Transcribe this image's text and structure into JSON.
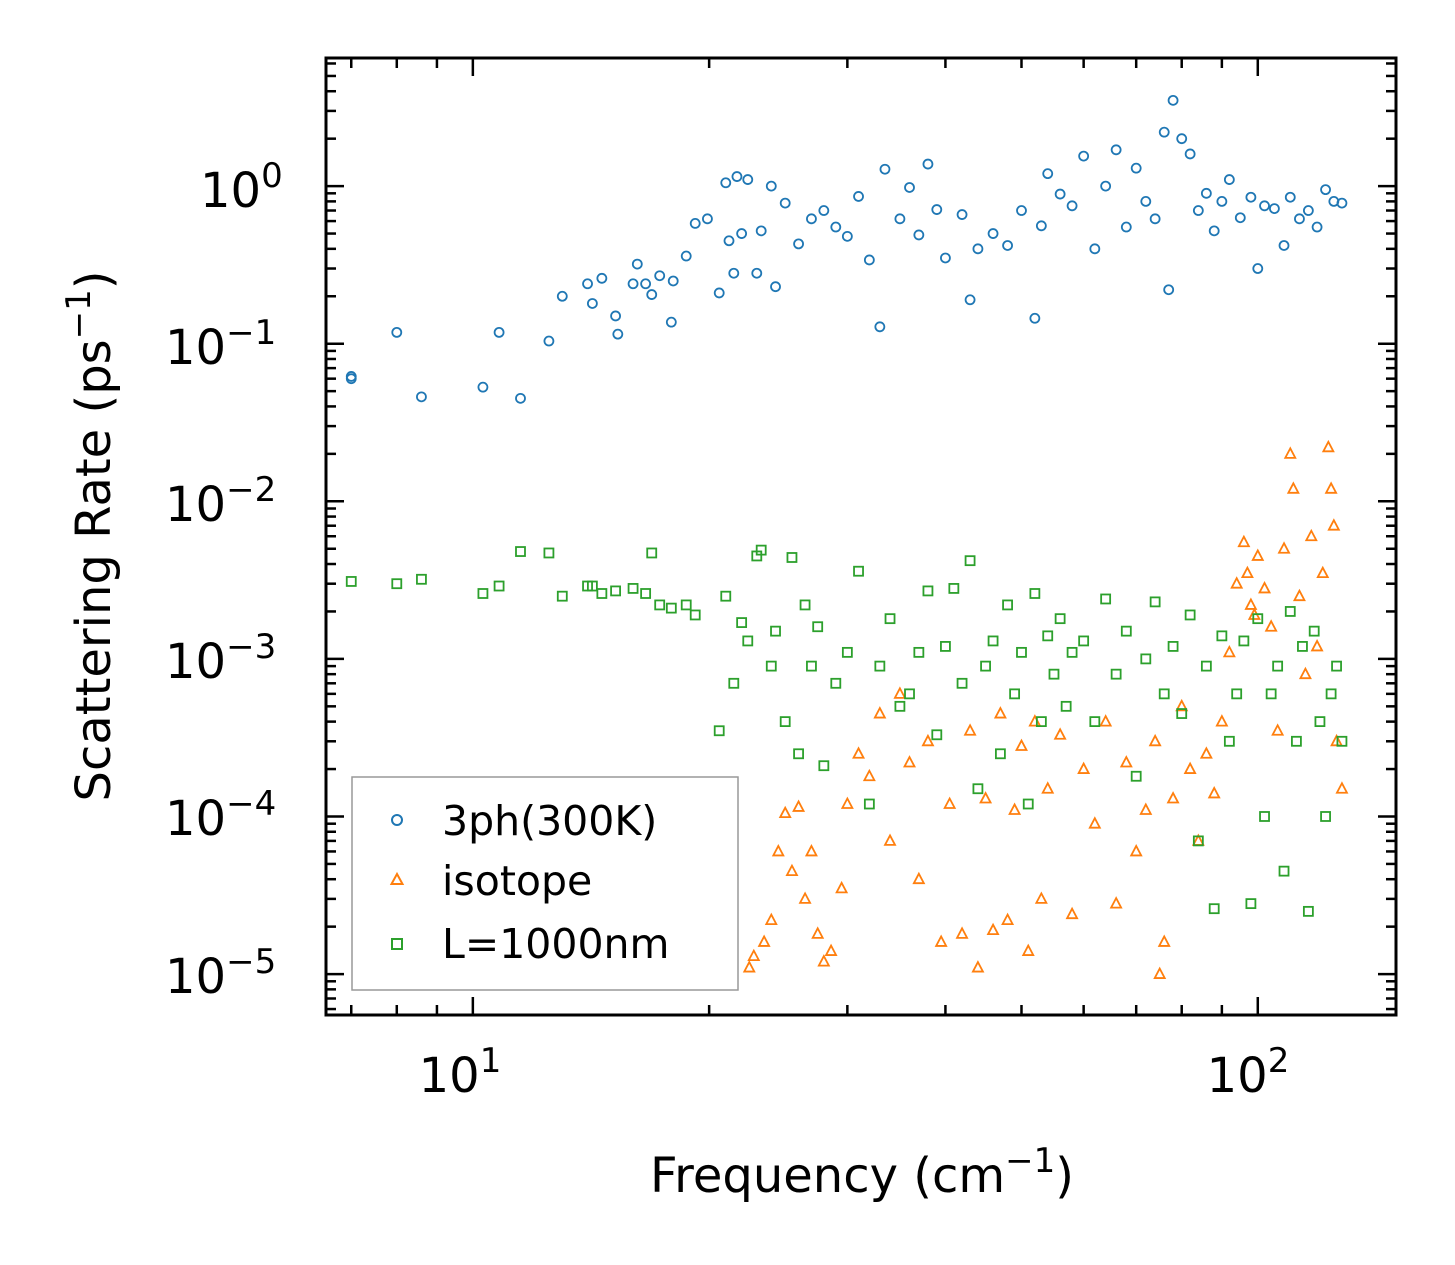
{
  "chart_data": {
    "type": "scatter",
    "title": "",
    "xlabel": "Frequency (cm",
    "xlabel_sup": "−1",
    "xlabel_tail": ")",
    "ylabel": "Scattering Rate (ps",
    "ylabel_sup": "−1",
    "ylabel_tail": ")",
    "xscale": "log",
    "yscale": "log",
    "xlim": [
      6.5,
      150
    ],
    "ylim": [
      5.5e-06,
      6.5
    ],
    "x_ticks": [
      {
        "value": 10,
        "base": "10",
        "exp": "1"
      },
      {
        "value": 100,
        "base": "10",
        "exp": "2"
      }
    ],
    "y_ticks": [
      {
        "value": 1,
        "base": "10",
        "exp": "0"
      },
      {
        "value": 0.1,
        "base": "10",
        "exp": "−1"
      },
      {
        "value": 0.01,
        "base": "10",
        "exp": "−2"
      },
      {
        "value": 0.001,
        "base": "10",
        "exp": "−3"
      },
      {
        "value": 0.0001,
        "base": "10",
        "exp": "−4"
      },
      {
        "value": 1e-05,
        "base": "10",
        "exp": "−5"
      }
    ],
    "legend_position": "lower-left",
    "series": [
      {
        "name": "3ph(300K)",
        "marker": "circle",
        "color": "#1f77b4",
        "sampled_points": [
          [
            7.0,
            0.062
          ],
          [
            7.0,
            0.06
          ],
          [
            8.0,
            0.118
          ],
          [
            8.6,
            0.046
          ],
          [
            10.3,
            0.053
          ],
          [
            10.8,
            0.118
          ],
          [
            11.5,
            0.045
          ],
          [
            12.5,
            0.104
          ],
          [
            13.0,
            0.2
          ],
          [
            14.0,
            0.24
          ],
          [
            14.2,
            0.18
          ],
          [
            14.6,
            0.26
          ],
          [
            15.2,
            0.15
          ],
          [
            15.3,
            0.115
          ],
          [
            16.0,
            0.24
          ],
          [
            16.2,
            0.32
          ],
          [
            16.6,
            0.24
          ],
          [
            16.9,
            0.205
          ],
          [
            17.3,
            0.27
          ],
          [
            17.9,
            0.137
          ],
          [
            18.0,
            0.25
          ],
          [
            18.7,
            0.36
          ],
          [
            19.2,
            0.58
          ],
          [
            19.9,
            0.62
          ],
          [
            20.6,
            0.21
          ],
          [
            21.0,
            1.05
          ],
          [
            21.2,
            0.45
          ],
          [
            21.5,
            0.28
          ],
          [
            21.7,
            1.15
          ],
          [
            22.0,
            0.5
          ],
          [
            22.4,
            1.1
          ],
          [
            23.0,
            0.28
          ],
          [
            23.3,
            0.52
          ],
          [
            24.0,
            1.0
          ],
          [
            24.3,
            0.23
          ],
          [
            25.0,
            0.78
          ],
          [
            26.0,
            0.43
          ],
          [
            27.0,
            0.62
          ],
          [
            28.0,
            0.7
          ],
          [
            29.0,
            0.55
          ],
          [
            30.0,
            0.48
          ],
          [
            31.0,
            0.86
          ],
          [
            32.0,
            0.34
          ],
          [
            33.0,
            0.128
          ],
          [
            33.5,
            1.28
          ],
          [
            35.0,
            0.62
          ],
          [
            36.0,
            0.98
          ],
          [
            37.0,
            0.49
          ],
          [
            38.0,
            1.38
          ],
          [
            39.0,
            0.71
          ],
          [
            40.0,
            0.35
          ],
          [
            42.0,
            0.66
          ],
          [
            43.0,
            0.19
          ],
          [
            44.0,
            0.4
          ],
          [
            46.0,
            0.5
          ],
          [
            48.0,
            0.42
          ],
          [
            50.0,
            0.7
          ],
          [
            52.0,
            0.145
          ],
          [
            53.0,
            0.56
          ],
          [
            54.0,
            1.2
          ],
          [
            56.0,
            0.89
          ],
          [
            58.0,
            0.75
          ],
          [
            60.0,
            1.55
          ],
          [
            62.0,
            0.4
          ],
          [
            64.0,
            1.0
          ],
          [
            66.0,
            1.7
          ],
          [
            68.0,
            0.55
          ],
          [
            70.0,
            1.3
          ],
          [
            72.0,
            0.8
          ],
          [
            74.0,
            0.62
          ],
          [
            76.0,
            2.2
          ],
          [
            77.0,
            0.22
          ],
          [
            78.0,
            3.5
          ],
          [
            80.0,
            2.0
          ],
          [
            82.0,
            1.6
          ],
          [
            84.0,
            0.7
          ],
          [
            86.0,
            0.9
          ],
          [
            88.0,
            0.52
          ],
          [
            90.0,
            0.8
          ],
          [
            92.0,
            1.1
          ],
          [
            95.0,
            0.63
          ],
          [
            98.0,
            0.85
          ],
          [
            100.0,
            0.3
          ],
          [
            102.0,
            0.75
          ],
          [
            105.0,
            0.72
          ],
          [
            108.0,
            0.42
          ],
          [
            110.0,
            0.85
          ],
          [
            113.0,
            0.62
          ],
          [
            116.0,
            0.7
          ],
          [
            119.0,
            0.55
          ],
          [
            122.0,
            0.95
          ],
          [
            125.0,
            0.8
          ],
          [
            128.0,
            0.78
          ]
        ]
      },
      {
        "name": "isotope",
        "marker": "triangle",
        "color": "#ff7f0e",
        "sampled_points": [
          [
            22.5,
            1.1e-05
          ],
          [
            22.8,
            1.3e-05
          ],
          [
            23.5,
            1.6e-05
          ],
          [
            24.0,
            2.2e-05
          ],
          [
            24.5,
            6e-05
          ],
          [
            25.0,
            0.000105
          ],
          [
            25.5,
            4.5e-05
          ],
          [
            26.0,
            0.000115
          ],
          [
            26.5,
            3e-05
          ],
          [
            27.0,
            6e-05
          ],
          [
            27.5,
            1.8e-05
          ],
          [
            28.0,
            1.2e-05
          ],
          [
            28.6,
            1.4e-05
          ],
          [
            29.5,
            3.5e-05
          ],
          [
            30.0,
            0.00012
          ],
          [
            31.0,
            0.00025
          ],
          [
            32.0,
            0.00018
          ],
          [
            33.0,
            0.00045
          ],
          [
            34.0,
            7e-05
          ],
          [
            35.0,
            0.0006
          ],
          [
            36.0,
            0.00022
          ],
          [
            37.0,
            4e-05
          ],
          [
            38.0,
            0.0003
          ],
          [
            39.5,
            1.6e-05
          ],
          [
            40.5,
            0.00012
          ],
          [
            42.0,
            1.8e-05
          ],
          [
            43.0,
            0.00035
          ],
          [
            44.0,
            1.1e-05
          ],
          [
            45.0,
            0.00013
          ],
          [
            46.0,
            1.9e-05
          ],
          [
            47.0,
            0.00045
          ],
          [
            48.0,
            2.2e-05
          ],
          [
            49.0,
            0.00011
          ],
          [
            50.0,
            0.00028
          ],
          [
            51.0,
            1.4e-05
          ],
          [
            52.0,
            0.0004
          ],
          [
            53.0,
            3e-05
          ],
          [
            54.0,
            0.00015
          ],
          [
            56.0,
            0.00033
          ],
          [
            58.0,
            2.4e-05
          ],
          [
            60.0,
            0.0002
          ],
          [
            62.0,
            9e-05
          ],
          [
            64.0,
            0.0004
          ],
          [
            66.0,
            2.8e-05
          ],
          [
            68.0,
            0.00022
          ],
          [
            70.0,
            6e-05
          ],
          [
            72.0,
            0.00011
          ],
          [
            74.0,
            0.0003
          ],
          [
            75.0,
            1e-05
          ],
          [
            76.0,
            1.6e-05
          ],
          [
            78.0,
            0.00013
          ],
          [
            80.0,
            0.0005
          ],
          [
            82.0,
            0.0002
          ],
          [
            84.0,
            7e-05
          ],
          [
            86.0,
            0.00025
          ],
          [
            88.0,
            0.00014
          ],
          [
            90.0,
            0.0004
          ],
          [
            92.0,
            0.0011
          ],
          [
            94.0,
            0.003
          ],
          [
            96.0,
            0.0055
          ],
          [
            97.0,
            0.0035
          ],
          [
            98.0,
            0.0022
          ],
          [
            99.0,
            0.0019
          ],
          [
            100.0,
            0.0045
          ],
          [
            102.0,
            0.0028
          ],
          [
            104.0,
            0.0016
          ],
          [
            106.0,
            0.00035
          ],
          [
            108.0,
            0.005
          ],
          [
            110.0,
            0.02
          ],
          [
            111.0,
            0.012
          ],
          [
            113.0,
            0.0025
          ],
          [
            115.0,
            0.0008
          ],
          [
            117.0,
            0.006
          ],
          [
            119.0,
            0.0012
          ],
          [
            121.0,
            0.0035
          ],
          [
            123.0,
            0.022
          ],
          [
            124.0,
            0.012
          ],
          [
            125.0,
            0.007
          ],
          [
            126.0,
            0.0003
          ],
          [
            128.0,
            0.00015
          ]
        ]
      },
      {
        "name": "L=1000nm",
        "marker": "square",
        "color": "#2ca02c",
        "sampled_points": [
          [
            7.0,
            0.0031
          ],
          [
            8.0,
            0.003
          ],
          [
            8.6,
            0.0032
          ],
          [
            10.3,
            0.0026
          ],
          [
            10.8,
            0.0029
          ],
          [
            11.5,
            0.0048
          ],
          [
            12.5,
            0.0047
          ],
          [
            13.0,
            0.0025
          ],
          [
            14.0,
            0.0029
          ],
          [
            14.2,
            0.0029
          ],
          [
            14.6,
            0.0026
          ],
          [
            15.2,
            0.0027
          ],
          [
            16.0,
            0.0028
          ],
          [
            16.6,
            0.0026
          ],
          [
            16.9,
            0.0047
          ],
          [
            17.3,
            0.0022
          ],
          [
            17.9,
            0.0021
          ],
          [
            18.7,
            0.0022
          ],
          [
            19.2,
            0.0019
          ],
          [
            20.6,
            0.00035
          ],
          [
            21.0,
            0.0025
          ],
          [
            21.5,
            0.0007
          ],
          [
            22.0,
            0.0017
          ],
          [
            22.4,
            0.0013
          ],
          [
            23.0,
            0.0045
          ],
          [
            23.3,
            0.0049
          ],
          [
            24.0,
            0.0009
          ],
          [
            24.3,
            0.0015
          ],
          [
            25.0,
            0.0004
          ],
          [
            25.5,
            0.0044
          ],
          [
            26.0,
            0.00025
          ],
          [
            26.5,
            0.0022
          ],
          [
            27.0,
            0.0009
          ],
          [
            27.5,
            0.0016
          ],
          [
            28.0,
            0.00021
          ],
          [
            29.0,
            0.0007
          ],
          [
            30.0,
            0.0011
          ],
          [
            31.0,
            0.0036
          ],
          [
            32.0,
            0.00012
          ],
          [
            33.0,
            0.0009
          ],
          [
            34.0,
            0.0018
          ],
          [
            35.0,
            0.0005
          ],
          [
            36.0,
            0.0006
          ],
          [
            37.0,
            0.0011
          ],
          [
            38.0,
            0.0027
          ],
          [
            39.0,
            0.00033
          ],
          [
            40.0,
            0.0012
          ],
          [
            41.0,
            0.0028
          ],
          [
            42.0,
            0.0007
          ],
          [
            43.0,
            0.0042
          ],
          [
            44.0,
            0.00015
          ],
          [
            45.0,
            0.0009
          ],
          [
            46.0,
            0.0013
          ],
          [
            47.0,
            0.00025
          ],
          [
            48.0,
            0.0022
          ],
          [
            49.0,
            0.0006
          ],
          [
            50.0,
            0.0011
          ],
          [
            51.0,
            0.00012
          ],
          [
            52.0,
            0.0026
          ],
          [
            53.0,
            0.0004
          ],
          [
            54.0,
            0.0014
          ],
          [
            55.0,
            0.0008
          ],
          [
            56.0,
            0.0018
          ],
          [
            57.0,
            0.0005
          ],
          [
            58.0,
            0.0011
          ],
          [
            60.0,
            0.0013
          ],
          [
            62.0,
            0.0004
          ],
          [
            64.0,
            0.0024
          ],
          [
            66.0,
            0.0008
          ],
          [
            68.0,
            0.0015
          ],
          [
            70.0,
            0.00018
          ],
          [
            72.0,
            0.001
          ],
          [
            74.0,
            0.0023
          ],
          [
            76.0,
            0.0006
          ],
          [
            78.0,
            0.0012
          ],
          [
            80.0,
            0.00045
          ],
          [
            82.0,
            0.0019
          ],
          [
            84.0,
            7e-05
          ],
          [
            86.0,
            0.0009
          ],
          [
            88.0,
            2.6e-05
          ],
          [
            90.0,
            0.0014
          ],
          [
            92.0,
            0.0003
          ],
          [
            94.0,
            0.0006
          ],
          [
            96.0,
            0.0013
          ],
          [
            98.0,
            2.8e-05
          ],
          [
            100.0,
            0.0018
          ],
          [
            102.0,
            0.0001
          ],
          [
            104.0,
            0.0006
          ],
          [
            106.0,
            0.0009
          ],
          [
            108.0,
            4.5e-05
          ],
          [
            110.0,
            0.002
          ],
          [
            112.0,
            0.0003
          ],
          [
            114.0,
            0.0012
          ],
          [
            116.0,
            2.5e-05
          ],
          [
            118.0,
            0.0015
          ],
          [
            120.0,
            0.0004
          ],
          [
            122.0,
            0.0001
          ],
          [
            124.0,
            0.0006
          ],
          [
            126.0,
            0.0009
          ],
          [
            128.0,
            0.0003
          ]
        ]
      }
    ]
  }
}
